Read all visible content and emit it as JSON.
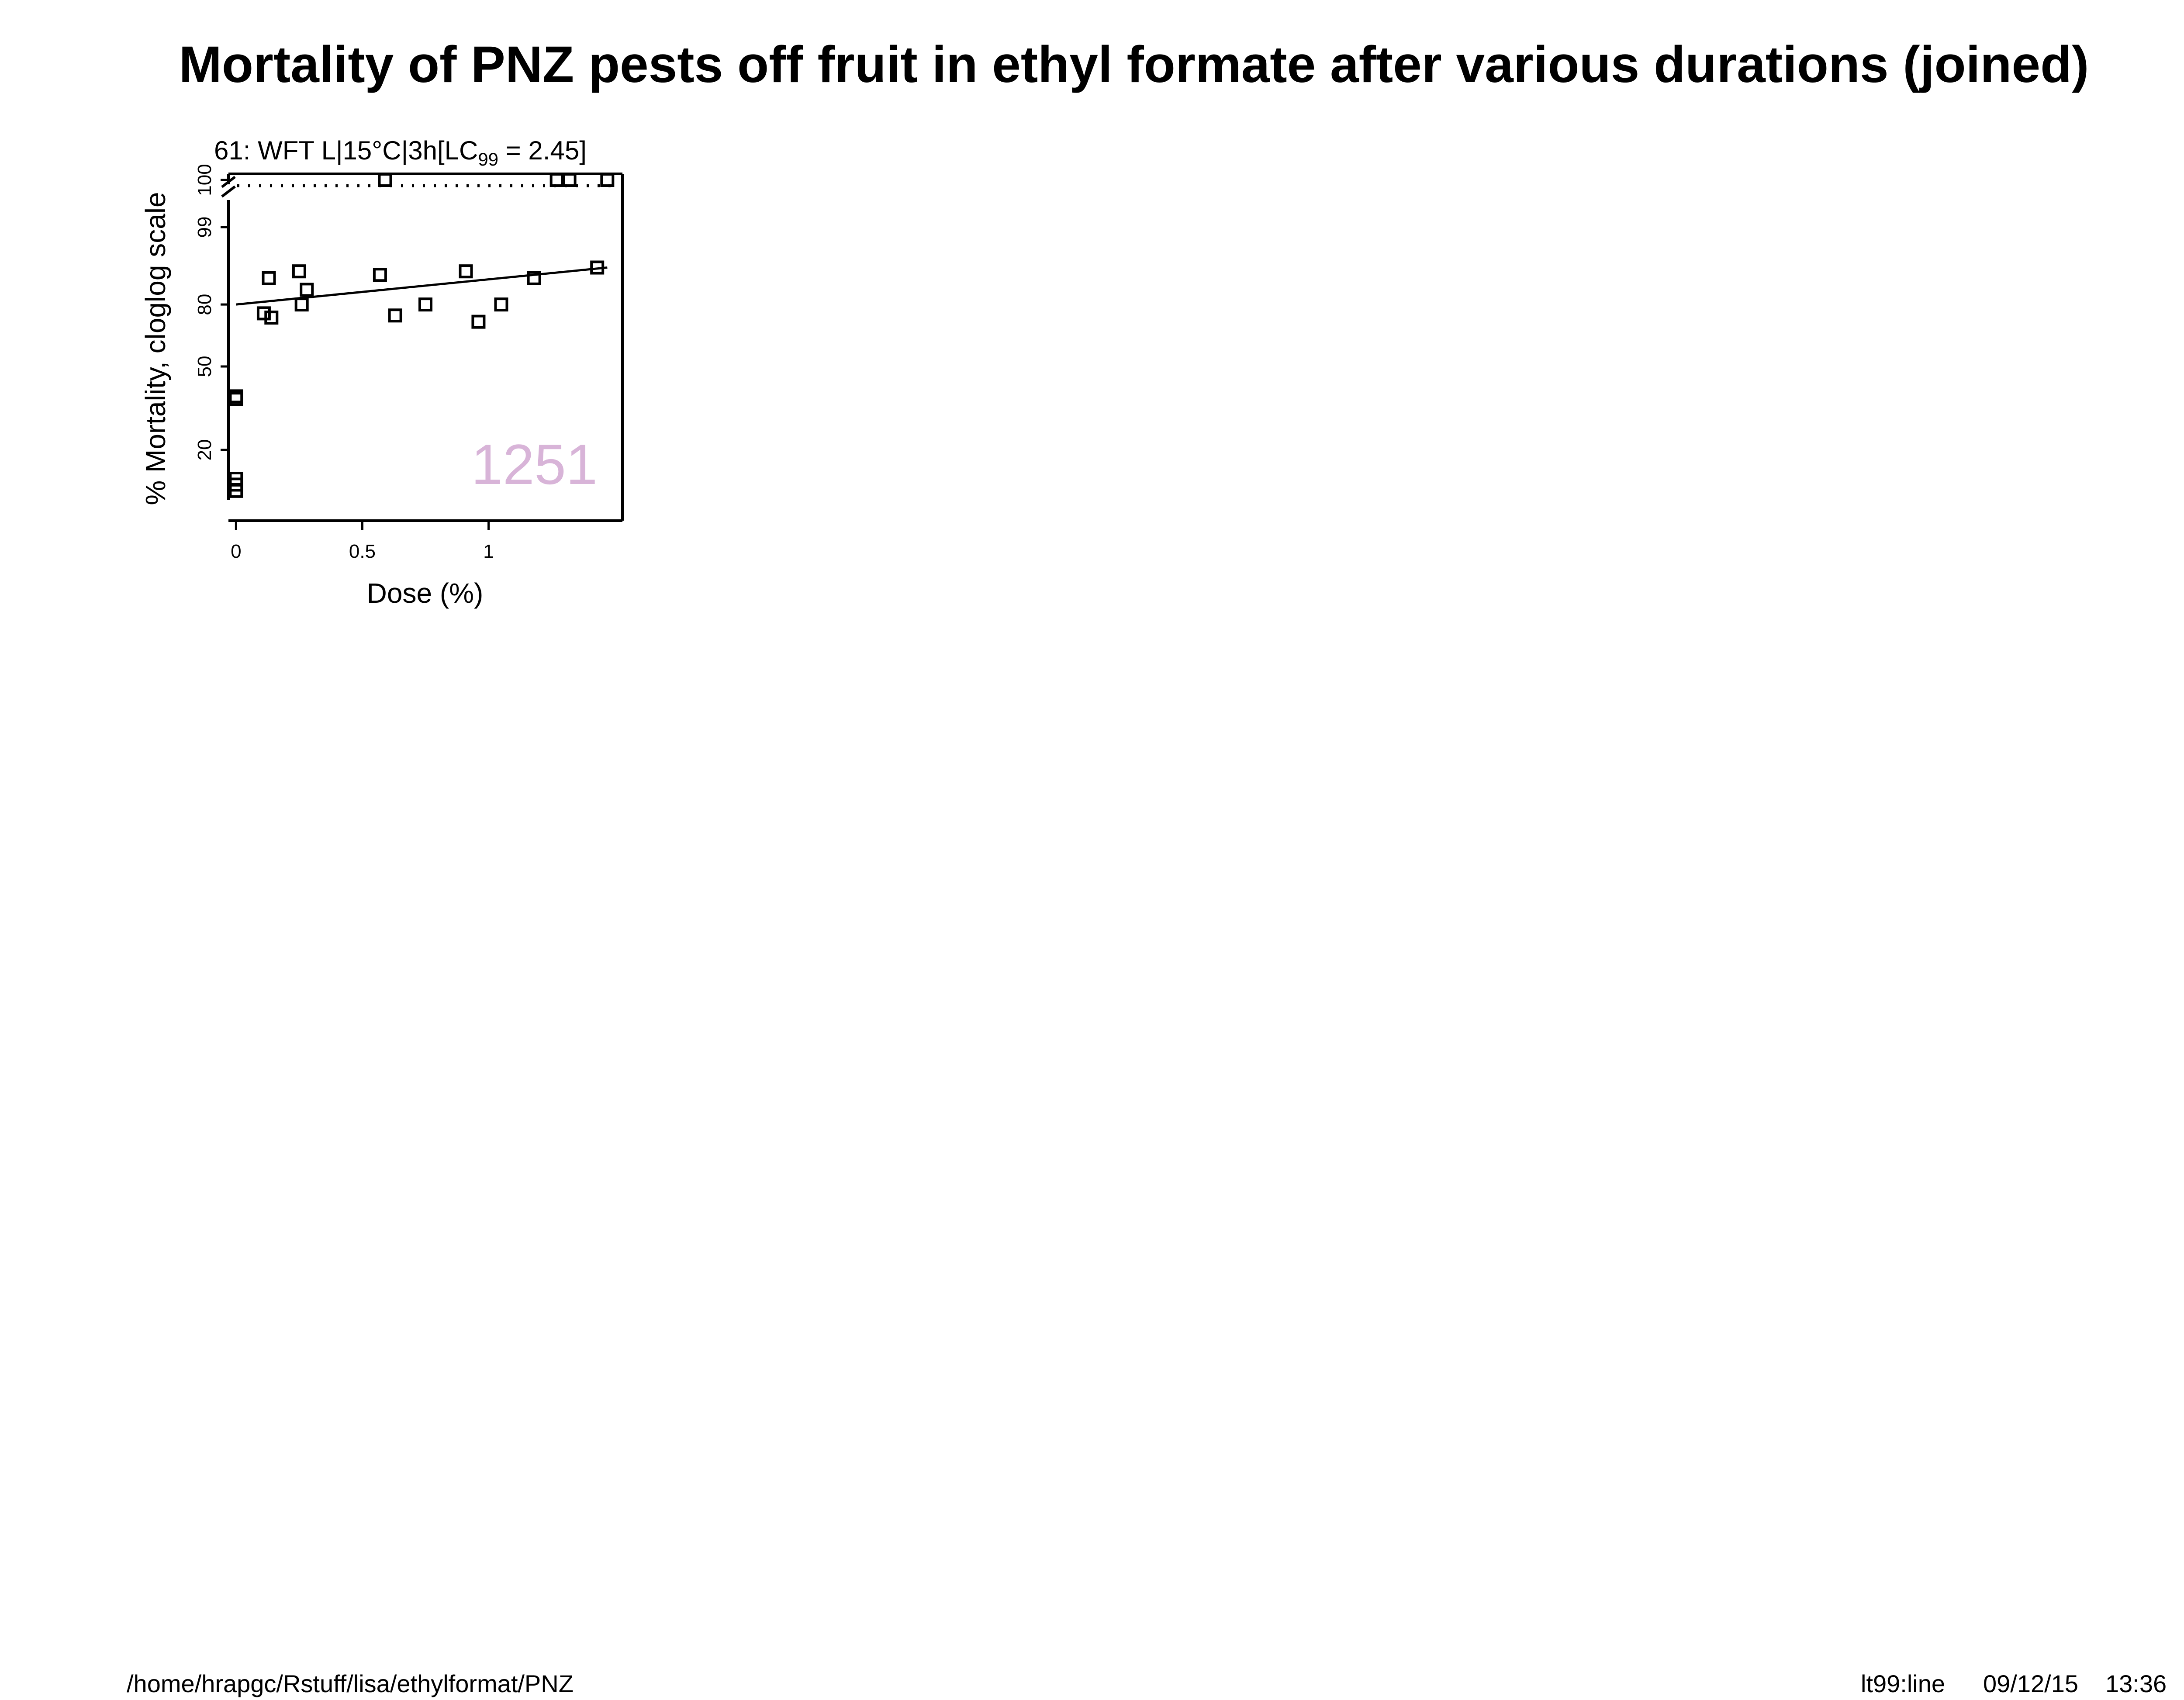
{
  "title": "Mortality of PNZ pests off fruit in ethyl formate after various durations (joined)",
  "footer": {
    "path": "/home/hrapgc/Rstuff/lisa/ethylformat/PNZ",
    "method": "lt99:line",
    "date": "09/12/15",
    "time": "13:36"
  },
  "chart_data": {
    "type": "scatter",
    "panel_title": {
      "prefix": "61: WFT L|15°C|3h[LC",
      "subscript": "99",
      "suffix": " = 2.45]"
    },
    "xlabel": "Dose (%)",
    "ylabel": "% Mortality, cloglog scale",
    "y_scale": "cloglog",
    "x_ticks": [
      0,
      0.5,
      1
    ],
    "x_tick_labels": [
      "0",
      "0.5",
      "1"
    ],
    "y_ticks": [
      20,
      50,
      80,
      99,
      100
    ],
    "y_tick_labels": [
      "20",
      "50",
      "80",
      "99",
      "100"
    ],
    "xlim": [
      -0.03,
      1.53
    ],
    "watermark": "1251",
    "watermark_color": "#d8b4d8",
    "points": [
      {
        "x": 0.0,
        "y": 14
      },
      {
        "x": 0.0,
        "y": 13
      },
      {
        "x": 0.0,
        "y": 12
      },
      {
        "x": 0.0,
        "y": 36
      },
      {
        "x": 0.0,
        "y": 37
      },
      {
        "x": 0.11,
        "y": 76
      },
      {
        "x": 0.13,
        "y": 90
      },
      {
        "x": 0.14,
        "y": 74
      },
      {
        "x": 0.25,
        "y": 92
      },
      {
        "x": 0.26,
        "y": 80
      },
      {
        "x": 0.28,
        "y": 86
      },
      {
        "x": 0.57,
        "y": 91
      },
      {
        "x": 0.59,
        "y": 100
      },
      {
        "x": 0.63,
        "y": 75
      },
      {
        "x": 0.75,
        "y": 80
      },
      {
        "x": 0.91,
        "y": 92
      },
      {
        "x": 0.96,
        "y": 72
      },
      {
        "x": 1.05,
        "y": 80
      },
      {
        "x": 1.18,
        "y": 90
      },
      {
        "x": 1.27,
        "y": 100
      },
      {
        "x": 1.32,
        "y": 100
      },
      {
        "x": 1.43,
        "y": 93
      },
      {
        "x": 1.47,
        "y": 100
      }
    ],
    "fit_line": {
      "x": [
        0.0,
        1.47
      ],
      "y": [
        80,
        93
      ]
    }
  }
}
